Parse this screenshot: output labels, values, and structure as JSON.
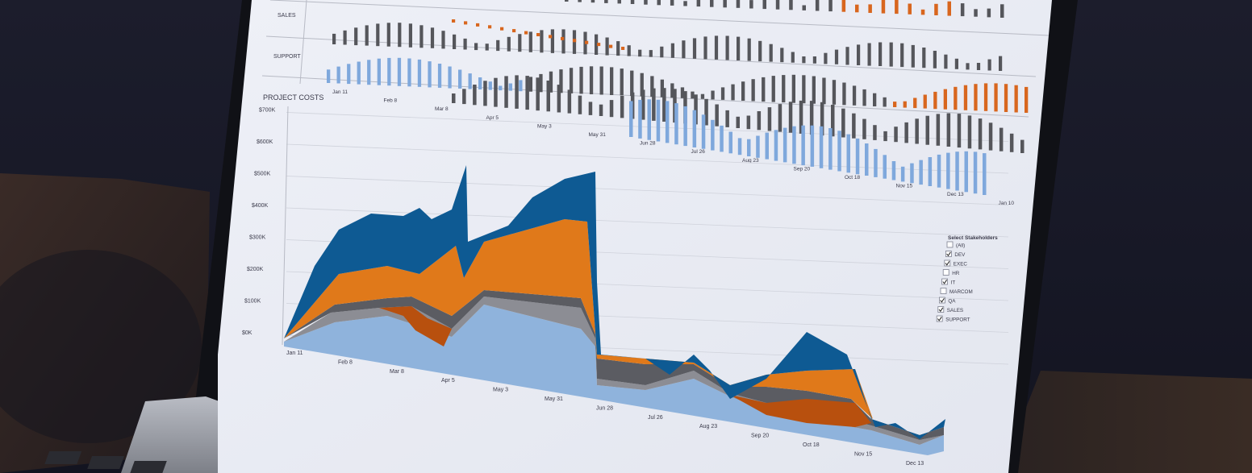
{
  "screen": {
    "panel_rows": [
      "SALES",
      "SUPPORT"
    ],
    "top_x_labels": [
      "Jan 11",
      "Feb 8",
      "Mar 8",
      "Apr 5",
      "May 3",
      "May 31",
      "Jun 28",
      "Jul 26",
      "Aug 23",
      "Sep 20",
      "Oct 18",
      "Nov 15",
      "Dec 13",
      "Jan 10"
    ],
    "section_title": "PROJECT COSTS",
    "y_ticks": [
      "$0K",
      "$100K",
      "$200K",
      "$300K",
      "$400K",
      "$500K",
      "$600K",
      "$700K"
    ],
    "x_labels": [
      "Jan 11",
      "Feb 8",
      "Mar 8",
      "Apr 5",
      "May 3",
      "May 31",
      "Jun 28",
      "Jul 26",
      "Aug 23",
      "Sep 20",
      "Oct 18",
      "Nov 15",
      "Dec 13"
    ],
    "legend": {
      "title": "Select Stakeholders",
      "items": [
        {
          "label": "(All)",
          "checked": false
        },
        {
          "label": "DEV",
          "checked": true
        },
        {
          "label": "EXEC",
          "checked": true
        },
        {
          "label": "HR",
          "checked": false
        },
        {
          "label": "IT",
          "checked": true
        },
        {
          "label": "MARCOM",
          "checked": false
        },
        {
          "label": "QA",
          "checked": true
        },
        {
          "label": "SALES",
          "checked": true
        },
        {
          "label": "SUPPORT",
          "checked": true
        }
      ]
    },
    "colors": {
      "dark_blue": "#0e5a93",
      "orange": "#e0791a",
      "gray": "#5b5c62",
      "dark_orange": "#b8500e",
      "light_gray": "#8c8d94",
      "light_blue": "#8fb3dc",
      "bar_dark": "#55565b",
      "bar_orange": "#d8661e",
      "bar_blue": "#7fa8dc"
    }
  }
}
